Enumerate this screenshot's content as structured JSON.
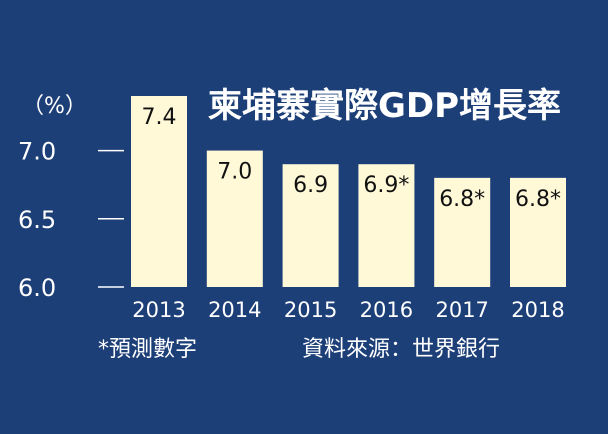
{
  "chart_data": {
    "type": "bar",
    "title": "柬埔寨實際GDP增長率",
    "ylabel": "（%）",
    "categories": [
      "2013",
      "2014",
      "2015",
      "2016",
      "2017",
      "2018"
    ],
    "values": [
      7.4,
      7.0,
      6.9,
      6.9,
      6.8,
      6.8
    ],
    "value_labels": [
      "7.4",
      "7.0",
      "6.9",
      "6.9*",
      "6.8*",
      "6.8*"
    ],
    "yticks": [
      "6.0",
      "6.5",
      "7.0"
    ],
    "ytick_values": [
      6.0,
      6.5,
      7.0
    ],
    "ylim": [
      6.0,
      7.4
    ],
    "grid": false,
    "legend": "none",
    "footnote": "*預測數字",
    "source": "資料來源：世界銀行",
    "colors": {
      "background": "#1d3f78",
      "bar": "#fff9d8",
      "text": "#ffffff",
      "value_text": "#111111"
    }
  }
}
